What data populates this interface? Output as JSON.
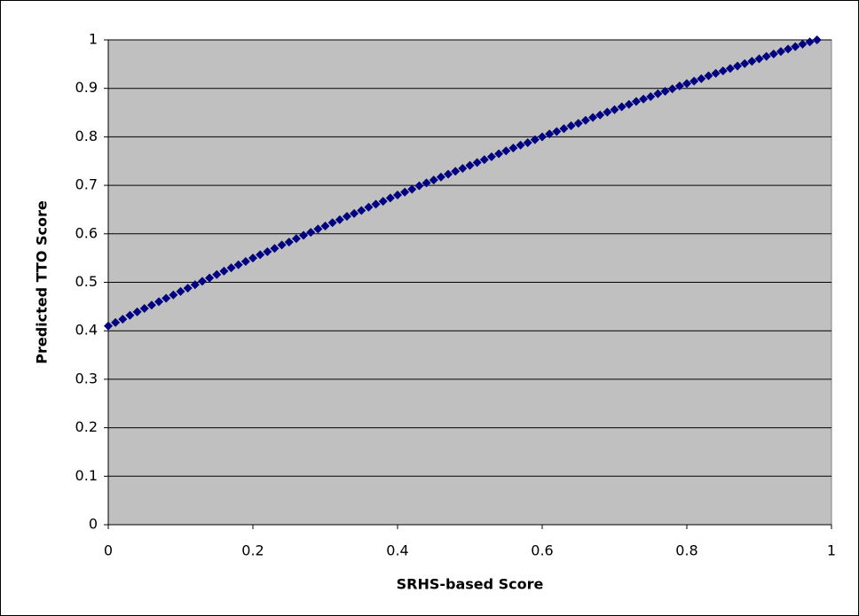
{
  "chart_data": {
    "type": "scatter",
    "x_label": "SRHS-based Score",
    "y_label": "Predicted TTO Score",
    "x": [
      0,
      0.01,
      0.02,
      0.03,
      0.04,
      0.05,
      0.06,
      0.07,
      0.08,
      0.09,
      0.1,
      0.11,
      0.12,
      0.13,
      0.14,
      0.15,
      0.16,
      0.17,
      0.18,
      0.19,
      0.2,
      0.21,
      0.22,
      0.23,
      0.24,
      0.25,
      0.26,
      0.27,
      0.28,
      0.29,
      0.3,
      0.31,
      0.32,
      0.33,
      0.34,
      0.35,
      0.36,
      0.37,
      0.38,
      0.39,
      0.4,
      0.41,
      0.42,
      0.43,
      0.44,
      0.45,
      0.46,
      0.47,
      0.48,
      0.49,
      0.5,
      0.51,
      0.52,
      0.53,
      0.54,
      0.55,
      0.56,
      0.57,
      0.58,
      0.59,
      0.6,
      0.61,
      0.62,
      0.63,
      0.64,
      0.65,
      0.66,
      0.67,
      0.68,
      0.69,
      0.7,
      0.71,
      0.72,
      0.73,
      0.74,
      0.75,
      0.76,
      0.77,
      0.78,
      0.79,
      0.8,
      0.81,
      0.82,
      0.83,
      0.84,
      0.85,
      0.86,
      0.87,
      0.88,
      0.89,
      0.9,
      0.91,
      0.92,
      0.93,
      0.94,
      0.95,
      0.96,
      0.97,
      0.98
    ],
    "values": [
      0.41,
      0.417,
      0.424,
      0.432,
      0.439,
      0.446,
      0.453,
      0.46,
      0.467,
      0.474,
      0.481,
      0.488,
      0.495,
      0.502,
      0.509,
      0.516,
      0.523,
      0.53,
      0.536,
      0.543,
      0.55,
      0.557,
      0.563,
      0.57,
      0.577,
      0.583,
      0.59,
      0.597,
      0.603,
      0.61,
      0.616,
      0.623,
      0.629,
      0.636,
      0.642,
      0.648,
      0.655,
      0.661,
      0.667,
      0.674,
      0.68,
      0.686,
      0.692,
      0.699,
      0.705,
      0.711,
      0.717,
      0.723,
      0.729,
      0.735,
      0.741,
      0.747,
      0.753,
      0.759,
      0.765,
      0.771,
      0.777,
      0.783,
      0.788,
      0.794,
      0.8,
      0.806,
      0.811,
      0.817,
      0.823,
      0.828,
      0.834,
      0.84,
      0.845,
      0.851,
      0.856,
      0.862,
      0.867,
      0.873,
      0.878,
      0.883,
      0.889,
      0.894,
      0.899,
      0.905,
      0.91,
      0.915,
      0.92,
      0.926,
      0.931,
      0.936,
      0.941,
      0.946,
      0.951,
      0.956,
      0.961,
      0.966,
      0.971,
      0.976,
      0.981,
      0.986,
      0.991,
      0.996,
      1.0
    ],
    "color": "#000080",
    "xlim": [
      0,
      1
    ],
    "xticks": [
      0,
      0.2,
      0.4,
      0.6,
      0.8,
      1
    ],
    "ylim": [
      0,
      1
    ],
    "yticks": [
      0,
      0.1,
      0.2,
      0.3,
      0.4,
      0.5,
      0.6,
      0.7,
      0.8,
      0.9,
      1
    ],
    "grid": true
  }
}
